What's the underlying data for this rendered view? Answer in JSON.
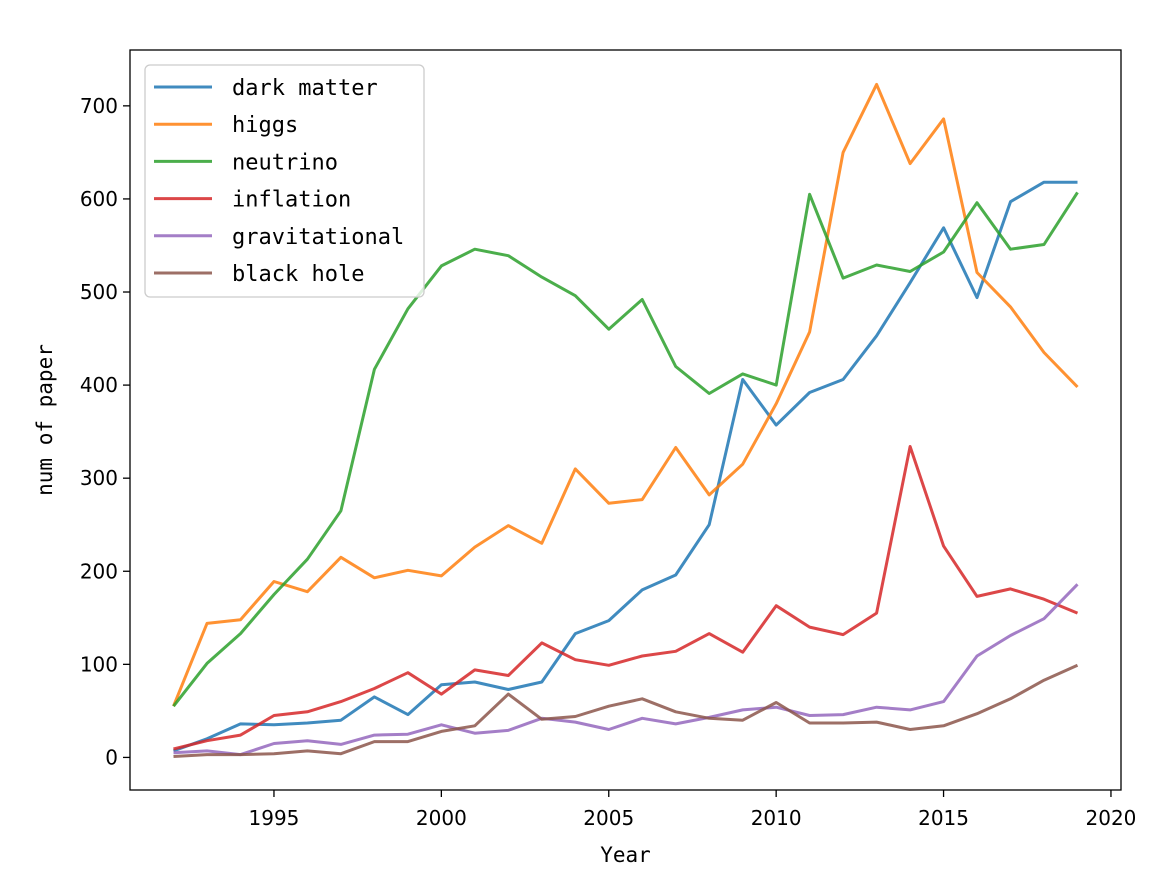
{
  "chart_data": {
    "type": "line",
    "title": "",
    "xlabel": "Year",
    "ylabel": "num of paper",
    "xlim": [
      1990.7,
      2020.3
    ],
    "ylim": [
      -35,
      760
    ],
    "x_ticks": [
      1995,
      2000,
      2005,
      2010,
      2015,
      2020
    ],
    "y_ticks": [
      0,
      100,
      200,
      300,
      400,
      500,
      600,
      700
    ],
    "grid": false,
    "legend_position": "top-left",
    "x": [
      1992,
      1993,
      1994,
      1995,
      1996,
      1997,
      1998,
      1999,
      2000,
      2001,
      2002,
      2003,
      2004,
      2005,
      2006,
      2007,
      2008,
      2009,
      2010,
      2011,
      2012,
      2013,
      2014,
      2015,
      2016,
      2017,
      2018,
      2019
    ],
    "series": [
      {
        "name": "dark matter",
        "color": "#1f77b4",
        "values": [
          7,
          20,
          36,
          35,
          37,
          40,
          65,
          46,
          78,
          81,
          73,
          81,
          133,
          147,
          180,
          196,
          250,
          406,
          357,
          392,
          406,
          453,
          510,
          569,
          494,
          597,
          618,
          618
        ]
      },
      {
        "name": "higgs",
        "color": "#ff7f0e",
        "values": [
          55,
          144,
          148,
          189,
          178,
          215,
          193,
          201,
          195,
          226,
          249,
          230,
          310,
          273,
          277,
          333,
          282,
          315,
          380,
          457,
          650,
          723,
          638,
          686,
          521,
          484,
          435,
          398
        ]
      },
      {
        "name": "neutrino",
        "color": "#2ca02c",
        "values": [
          55,
          101,
          133,
          175,
          213,
          265,
          417,
          482,
          528,
          546,
          539,
          516,
          496,
          460,
          492,
          420,
          391,
          412,
          400,
          605,
          515,
          529,
          522,
          543,
          596,
          546,
          551,
          607
        ]
      },
      {
        "name": "inflation",
        "color": "#d62728",
        "values": [
          9,
          18,
          24,
          45,
          49,
          60,
          74,
          91,
          68,
          94,
          88,
          123,
          105,
          99,
          109,
          114,
          133,
          113,
          163,
          140,
          132,
          155,
          334,
          227,
          173,
          181,
          170,
          155
        ]
      },
      {
        "name": "gravitational",
        "color": "#9467bd",
        "values": [
          5,
          7,
          3,
          15,
          18,
          14,
          24,
          25,
          35,
          26,
          29,
          42,
          38,
          30,
          42,
          36,
          43,
          51,
          54,
          45,
          46,
          54,
          51,
          60,
          109,
          131,
          149,
          186
        ]
      },
      {
        "name": "black hole",
        "color": "#8c564b",
        "values": [
          1,
          3,
          3,
          4,
          7,
          4,
          17,
          17,
          28,
          34,
          68,
          41,
          44,
          55,
          63,
          49,
          42,
          40,
          59,
          37,
          37,
          38,
          30,
          34,
          47,
          63,
          83,
          99
        ]
      }
    ]
  }
}
